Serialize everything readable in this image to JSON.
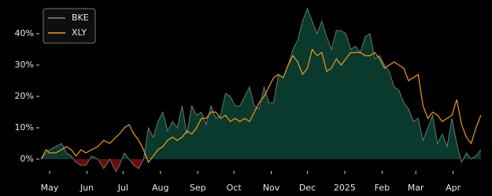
{
  "chart_data": {
    "type": "line",
    "x": [
      -7,
      -3,
      0,
      5,
      10,
      14,
      18,
      22,
      26,
      30,
      35,
      40,
      45,
      50,
      55,
      58,
      62,
      66,
      70,
      74,
      78,
      82,
      86,
      90,
      94,
      98,
      102,
      106,
      110,
      114,
      118,
      122,
      126,
      130,
      134,
      138,
      142,
      146,
      150,
      154,
      158,
      162,
      166,
      170,
      174,
      178,
      182,
      186,
      190,
      194,
      198,
      202,
      206,
      210,
      214,
      218,
      222,
      226,
      230,
      234,
      238,
      242,
      246,
      250,
      254,
      258,
      262,
      266,
      270,
      274,
      278,
      282,
      286,
      290,
      294,
      298,
      302,
      306,
      310,
      314,
      318,
      322,
      326,
      330,
      334,
      338,
      342,
      346,
      350,
      354,
      358
    ],
    "series": [
      {
        "name": "BKE",
        "color": "#7d8a85",
        "fill_colors": [
          "#0a3a2e",
          "#6a0d0d"
        ],
        "values": [
          0,
          2,
          3,
          4,
          5,
          2,
          1,
          -1,
          -2,
          -2,
          1,
          0,
          -3,
          0,
          -4,
          -2,
          2,
          0,
          -2,
          -3,
          0,
          10,
          7,
          12,
          15,
          9,
          12,
          10,
          17,
          8,
          17,
          14,
          15,
          11,
          17,
          13,
          14,
          21,
          20,
          17,
          17,
          20,
          23,
          17,
          16,
          23,
          18,
          18,
          27,
          26,
          30,
          35,
          38,
          44,
          48,
          44,
          40,
          44,
          39,
          35,
          41,
          41,
          40,
          35,
          36,
          34,
          39,
          40,
          32,
          33,
          30,
          28,
          23,
          22,
          18,
          16,
          12,
          13,
          6,
          10,
          14,
          5,
          8,
          4,
          13,
          5,
          -1,
          2,
          0,
          1,
          3
        ]
      },
      {
        "name": "XLY",
        "color": "#f29b10",
        "values": [
          0,
          3,
          2,
          2,
          3,
          4,
          3,
          1,
          3,
          2,
          3,
          4,
          6,
          5,
          7,
          8,
          10,
          11,
          8,
          6,
          3,
          -1,
          1,
          3,
          4,
          6,
          7,
          6,
          7,
          9,
          8,
          10,
          13,
          13,
          15,
          15,
          13,
          14,
          12,
          13,
          12,
          13,
          12,
          15,
          18,
          20,
          23,
          26,
          27,
          26,
          30,
          33,
          31,
          27,
          29,
          35,
          33,
          34,
          28,
          29,
          32,
          30,
          32,
          34,
          34,
          34,
          33,
          33,
          34,
          32,
          29,
          30,
          31,
          30,
          29,
          25,
          26,
          27,
          17,
          13,
          15,
          14,
          12,
          13,
          14,
          19,
          11,
          7,
          5,
          10,
          14
        ]
      }
    ],
    "xlim": [
      -8.5,
      364
    ],
    "xticks": [
      {
        "value": 0,
        "label": "May"
      },
      {
        "value": 31,
        "label": "Jun"
      },
      {
        "value": 61,
        "label": "Jul"
      },
      {
        "value": 92,
        "label": "Aug"
      },
      {
        "value": 123,
        "label": "Sep"
      },
      {
        "value": 153,
        "label": "Oct"
      },
      {
        "value": 184,
        "label": "Nov"
      },
      {
        "value": 214,
        "label": "Dec"
      },
      {
        "value": 245,
        "label": "2025"
      },
      {
        "value": 276,
        "label": "Feb"
      },
      {
        "value": 304,
        "label": "Mar"
      },
      {
        "value": 335,
        "label": "Apr"
      }
    ],
    "ylim": [
      -3.75,
      48.75
    ],
    "yticks": [
      {
        "value": 0,
        "label": "0%"
      },
      {
        "value": 10,
        "label": "10%"
      },
      {
        "value": 20,
        "label": "20%"
      },
      {
        "value": 30,
        "label": "30%"
      },
      {
        "value": 40,
        "label": "40%"
      }
    ],
    "grid": false,
    "legend": "upper left"
  }
}
